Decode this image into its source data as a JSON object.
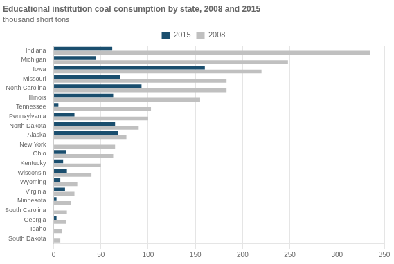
{
  "chart_data": {
    "type": "bar",
    "orientation": "horizontal",
    "title": "Educational institution coal consumption by state, 2008 and 2015",
    "subtitle": "thousand short tons",
    "categories": [
      "Indiana",
      "Michigan",
      "Iowa",
      "Missouri",
      "North Carolina",
      "Illinois",
      "Tennessee",
      "Pennsylvania",
      "North Dakota",
      "Alaska",
      "New York",
      "Ohio",
      "Kentucky",
      "Wisconsin",
      "Wyoming",
      "Virginia",
      "Minnesota",
      "South Carolina",
      "Georgia",
      "Idaho",
      "South Dakota"
    ],
    "series": [
      {
        "name": "2015",
        "color": "#1a4e6e",
        "values": [
          62,
          45,
          160,
          70,
          93,
          63,
          5,
          22,
          65,
          68,
          0,
          13,
          10,
          14,
          7,
          12,
          3,
          0,
          3,
          0,
          0
        ]
      },
      {
        "name": "2008",
        "color": "#c0c0c0",
        "values": [
          335,
          248,
          220,
          183,
          183,
          155,
          103,
          100,
          90,
          77,
          65,
          63,
          50,
          40,
          25,
          22,
          18,
          14,
          13,
          9,
          7
        ]
      }
    ],
    "xlim": [
      0,
      350
    ],
    "xticks": [
      0,
      50,
      100,
      150,
      200,
      250,
      300,
      350
    ],
    "grid": true,
    "legend": "top"
  }
}
